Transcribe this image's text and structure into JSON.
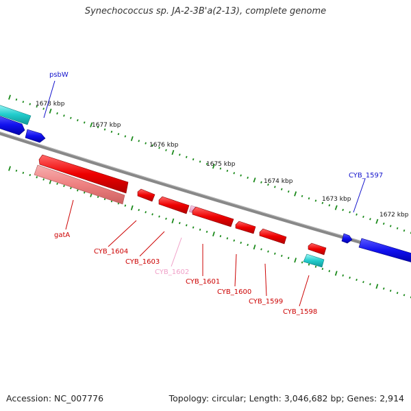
{
  "title": "Synechococcus sp. JA-2-3B'a(2-13), complete genome",
  "accession": "Accession: NC_007776",
  "summary": "Topology: circular; Length: 3,046,682 bp; Genes: 2,914",
  "scale_labels": [
    "1678 kbp",
    "1677 kbp",
    "1676 kbp",
    "1675 kbp",
    "1674 kbp",
    "1673 kbp",
    "1672 kbp"
  ],
  "colors": {
    "backbone": "#777777",
    "tick": "#1b8a1b",
    "forward_gene": "#1a1aee",
    "forward_rna": "#22cccc",
    "reverse_gene": "#ee1111",
    "reverse_pseudo": "#ee8888",
    "reverse_light": "#f0a0c8"
  },
  "genes": [
    {
      "name": "psbW",
      "strand": "forward",
      "color": "#1a1aee"
    },
    {
      "name": "CYB_1597",
      "strand": "forward",
      "color": "#1a1aee"
    },
    {
      "name": "gatA",
      "strand": "reverse",
      "color": "#cc0000"
    },
    {
      "name": "CYB_1604",
      "strand": "reverse",
      "color": "#cc0000"
    },
    {
      "name": "CYB_1603",
      "strand": "reverse",
      "color": "#cc0000"
    },
    {
      "name": "CYB_1602",
      "strand": "reverse",
      "color": "#ee99cc"
    },
    {
      "name": "CYB_1601",
      "strand": "reverse",
      "color": "#cc0000"
    },
    {
      "name": "CYB_1600",
      "strand": "reverse",
      "color": "#cc0000"
    },
    {
      "name": "CYB_1599",
      "strand": "reverse",
      "color": "#cc0000"
    },
    {
      "name": "CYB_1598",
      "strand": "reverse",
      "color": "#cc0000"
    }
  ]
}
